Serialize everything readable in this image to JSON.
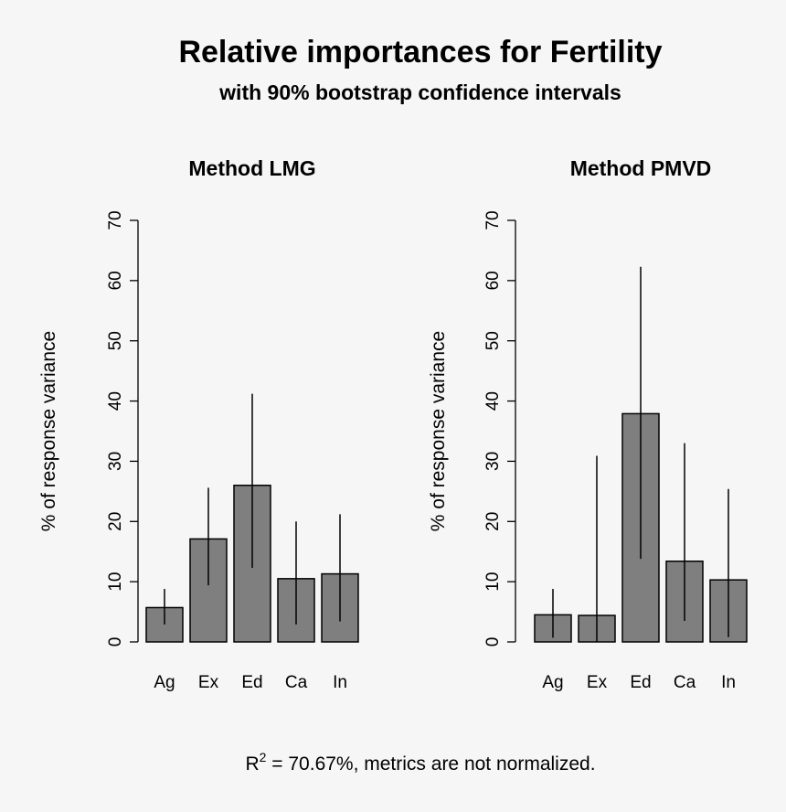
{
  "header": {
    "title": "Relative importances for Fertility",
    "subtitle": "with 90% bootstrap confidence intervals"
  },
  "footer": {
    "r_symbol": "R",
    "r_exponent": "2",
    "text": " = 70.67%, metrics are not normalized."
  },
  "colors": {
    "bar_fill": "#7f7f7f",
    "bar_stroke": "#000000",
    "background": "#f6f6f6"
  },
  "chart_data": [
    {
      "type": "bar",
      "title": "Method LMG",
      "ylabel": "% of response variance",
      "xlabel": "",
      "ylim": [
        0,
        70
      ],
      "yticks": [
        0,
        10,
        20,
        30,
        40,
        50,
        60,
        70
      ],
      "categories": [
        "Ag",
        "Ex",
        "Ed",
        "Ca",
        "In"
      ],
      "values": [
        5.7,
        17.1,
        26.0,
        10.5,
        11.3
      ],
      "ci_lower": [
        2.9,
        9.4,
        12.3,
        2.9,
        3.4
      ],
      "ci_upper": [
        8.8,
        25.6,
        41.2,
        20.0,
        21.2
      ]
    },
    {
      "type": "bar",
      "title": "Method PMVD",
      "ylabel": "% of response variance",
      "xlabel": "",
      "ylim": [
        0,
        70
      ],
      "yticks": [
        0,
        10,
        20,
        30,
        40,
        50,
        60,
        70
      ],
      "categories": [
        "Ag",
        "Ex",
        "Ed",
        "Ca",
        "In"
      ],
      "values": [
        4.5,
        4.4,
        37.9,
        13.4,
        10.3
      ],
      "ci_lower": [
        0.7,
        0.0,
        13.8,
        3.5,
        0.8
      ],
      "ci_upper": [
        8.8,
        30.9,
        62.3,
        33.0,
        25.4
      ]
    }
  ]
}
